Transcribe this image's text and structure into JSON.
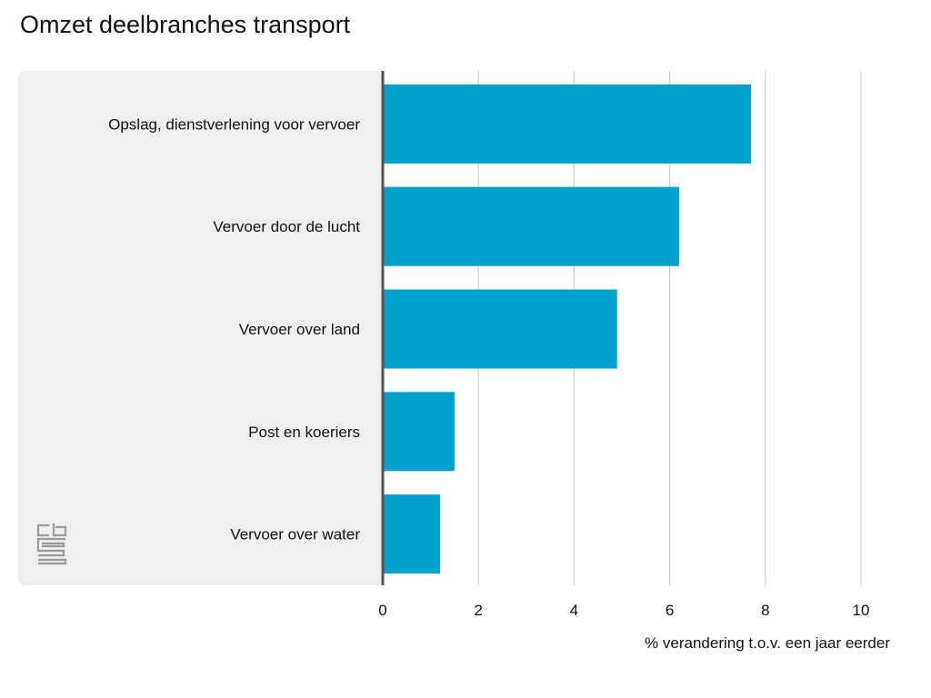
{
  "chart_data": {
    "type": "bar",
    "orientation": "horizontal",
    "title": "Omzet deelbranches transport",
    "categories": [
      "Opslag, dienstverlening voor vervoer",
      "Vervoer door de lucht",
      "Vervoer over land",
      "Post en koeriers",
      "Vervoer over water"
    ],
    "values": [
      7.7,
      6.2,
      4.9,
      1.5,
      1.2
    ],
    "xlabel": "% verandering t.o.v. een jaar eerder",
    "ylabel": "",
    "xlim": [
      0,
      10
    ],
    "xticks": [
      "0",
      "2",
      "4",
      "6",
      "8",
      "10"
    ],
    "grid": "vertical",
    "legend": "none",
    "colors": {
      "bar": "#00a1cd",
      "label_panel": "#efefef",
      "gridline": "#cfcfcf",
      "baseline": "#555555"
    },
    "logo": "cbs-logo"
  }
}
